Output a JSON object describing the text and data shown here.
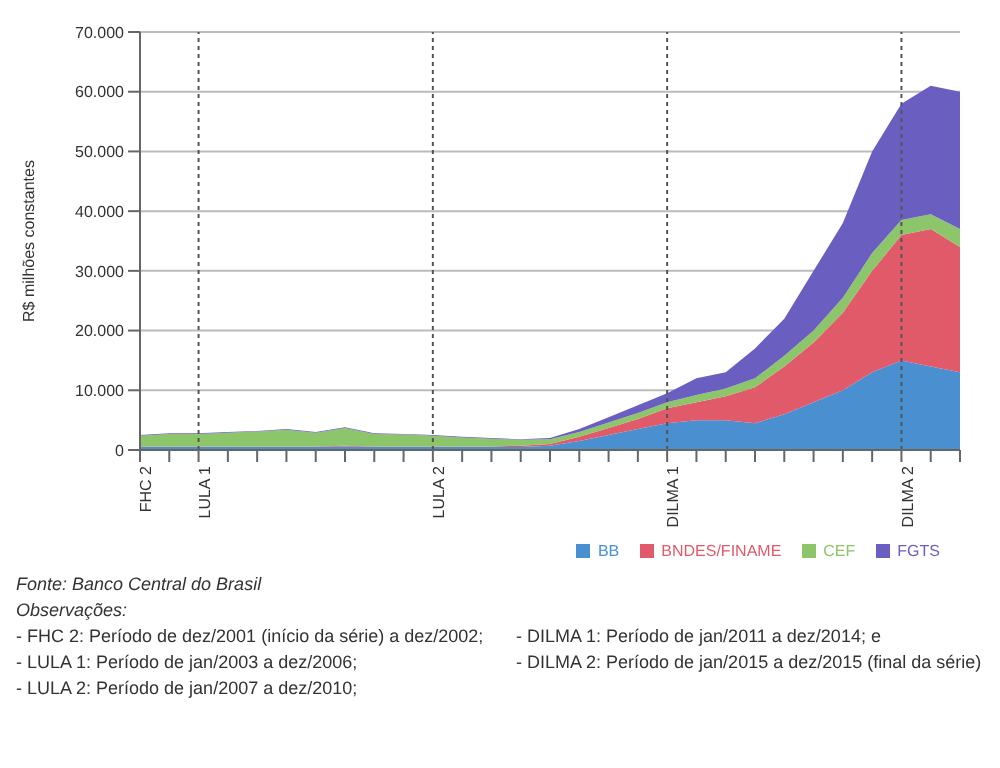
{
  "chart_data": {
    "type": "area",
    "stacked": true,
    "ylabel": "R$ milhões constantes",
    "categories": [
      "FHC 2",
      null,
      "LULA 1",
      null,
      null,
      null,
      null,
      null,
      null,
      null,
      "LULA 2",
      null,
      null,
      null,
      null,
      null,
      null,
      null,
      "DILMA 1",
      null,
      null,
      null,
      null,
      null,
      null,
      null,
      "DILMA 2",
      null,
      null
    ],
    "series": [
      {
        "name": "BB",
        "color": "#4a8fd0",
        "values": [
          500,
          500,
          500,
          500,
          500,
          500,
          500,
          600,
          500,
          500,
          500,
          500,
          500,
          500,
          700,
          1500,
          2500,
          3500,
          4500,
          5000,
          5000,
          4500,
          6000,
          8000,
          10000,
          13000,
          15000,
          14000,
          13000
        ]
      },
      {
        "name": "BNDES/FINAME",
        "color": "#e05a6a",
        "values": [
          100,
          100,
          100,
          100,
          100,
          100,
          100,
          100,
          100,
          100,
          100,
          100,
          100,
          200,
          300,
          700,
          1200,
          1700,
          2500,
          3000,
          4000,
          6000,
          8000,
          10000,
          13000,
          17000,
          21000,
          23000,
          21000
        ]
      },
      {
        "name": "CEF",
        "color": "#8cc56a",
        "values": [
          1800,
          2100,
          2100,
          2300,
          2500,
          2800,
          2300,
          3000,
          2100,
          2000,
          1800,
          1500,
          1300,
          1000,
          800,
          800,
          900,
          1000,
          1000,
          1200,
          1300,
          1500,
          1800,
          2000,
          2500,
          3000,
          2500,
          2500,
          3000
        ]
      },
      {
        "name": "FGTS",
        "color": "#6a5fc0",
        "values": [
          100,
          100,
          100,
          100,
          100,
          100,
          100,
          100,
          100,
          100,
          100,
          100,
          100,
          100,
          200,
          500,
          900,
          1300,
          1500,
          2800,
          2700,
          5000,
          6200,
          10000,
          12500,
          17000,
          19500,
          21500,
          23000
        ]
      }
    ],
    "ylim": [
      0,
      70000
    ],
    "yticks": [
      0,
      {
        "value": 10000,
        "label": "10.000"
      },
      {
        "value": 20000,
        "label": "20.000"
      },
      {
        "value": 30000,
        "label": "30.000"
      },
      {
        "value": 40000,
        "label": "40.000"
      },
      {
        "value": 50000,
        "label": "50.000"
      },
      {
        "value": 60000,
        "label": "60.000"
      },
      {
        "value": 70000,
        "label": "70.000"
      }
    ],
    "grid": "y",
    "legend": "bottom",
    "ref_lines": [
      {
        "axis": "x",
        "value": "LULA 1",
        "line_style": "dotted",
        "color": "#555555"
      },
      {
        "axis": "x",
        "value": "LULA 2",
        "line_style": "dotted",
        "color": "#555555"
      },
      {
        "axis": "x",
        "value": "DILMA 1",
        "line_style": "dotted",
        "color": "#555555"
      },
      {
        "axis": "x",
        "value": "DILMA 2",
        "line_style": "dotted",
        "color": "#555555"
      }
    ],
    "annotations": [
      "Fonte: Banco Central do Brasil",
      "Observações:",
      "- FHC 2: Período de dez/2001 (início da série) a dez/2002;",
      "- LULA 1: Período de jan/2003 a dez/2006;",
      "- LULA 2: Período de jan/2007 a dez/2010;",
      "- DILMA 1: Período de jan/2011 a dez/2014; e",
      "- DILMA 2: Período de jan/2015 a dez/2015 (final da série)"
    ]
  }
}
